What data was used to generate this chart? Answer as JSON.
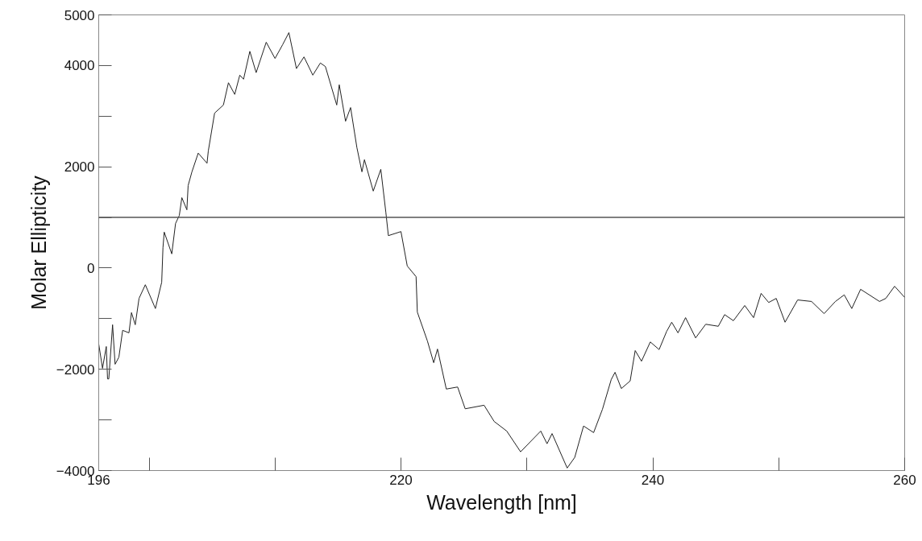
{
  "chart_data": {
    "type": "line",
    "xlabel": "Wavelength [nm]",
    "ylabel": "Molar Ellipticity",
    "xlim": [
      196,
      260
    ],
    "ylim": [
      -4000,
      5000
    ],
    "xticks": [
      196,
      {
        "value": 200,
        "label": null
      },
      {
        "value": 210,
        "label": null
      },
      220,
      {
        "value": 230,
        "label": null
      },
      240,
      {
        "value": 250,
        "label": null
      },
      260
    ],
    "yticks": [
      -4000,
      {
        "value": -3000,
        "label": null
      },
      -2000,
      {
        "value": -1000,
        "label": null
      },
      0,
      {
        "value": 1000,
        "label": null
      },
      2000,
      {
        "value": 3000,
        "label": null
      },
      4000,
      5000
    ],
    "grid": false,
    "marker": "none",
    "line_style": "solid",
    "ref_lines": [
      {
        "axis": "y",
        "value": 1000,
        "color": "#555555"
      }
    ],
    "series": [
      {
        "color": "#222222",
        "x": [
          196.0,
          196.3,
          196.6,
          196.7,
          196.8,
          197.1,
          197.3,
          197.6,
          197.9,
          198.4,
          198.6,
          198.9,
          199.2,
          199.7,
          200.5,
          201.0,
          201.1,
          201.2,
          201.8,
          202.1,
          202.4,
          202.6,
          203.0,
          203.1,
          203.4,
          203.9,
          204.6,
          204.7,
          205.2,
          205.9,
          206.3,
          206.8,
          207.2,
          207.5,
          208.0,
          208.5,
          209.3,
          210.0,
          210.6,
          211.1,
          211.7,
          212.3,
          213.0,
          213.6,
          214.0,
          214.9,
          215.1,
          215.6,
          216.0,
          216.5,
          216.9,
          217.1,
          217.8,
          218.4,
          218.8,
          219.0,
          220.0,
          220.5,
          221.2,
          221.3,
          222.1,
          222.6,
          222.9,
          223.6,
          224.5,
          225.1,
          226.6,
          227.4,
          228.4,
          229.5,
          231.1,
          231.6,
          232.0,
          233.2,
          233.8,
          234.5,
          235.3,
          236.0,
          236.7,
          237.0,
          237.5,
          238.2,
          238.6,
          239.1,
          239.8,
          240.5,
          241.1,
          241.5,
          242.0,
          242.6,
          243.4,
          244.2,
          245.2,
          245.7,
          246.4,
          247.3,
          248.0,
          248.6,
          249.2,
          249.8,
          250.5,
          251.5,
          252.6,
          253.6,
          254.5,
          255.2,
          255.8,
          256.5,
          258.0,
          258.5,
          259.2,
          260.0
        ],
        "values": [
          -1500,
          -1980,
          -1550,
          -2190,
          -2190,
          -1120,
          -1900,
          -1760,
          -1230,
          -1280,
          -880,
          -1120,
          -600,
          -330,
          -800,
          -280,
          400,
          710,
          280,
          880,
          1040,
          1390,
          1150,
          1630,
          1900,
          2270,
          2070,
          2310,
          3060,
          3220,
          3660,
          3430,
          3810,
          3730,
          4280,
          3860,
          4460,
          4140,
          4410,
          4650,
          3940,
          4170,
          3810,
          4050,
          3980,
          3220,
          3620,
          2900,
          3170,
          2380,
          1900,
          2140,
          1520,
          1950,
          1100,
          640,
          720,
          40,
          -170,
          -870,
          -1440,
          -1870,
          -1600,
          -2390,
          -2350,
          -2780,
          -2710,
          -3030,
          -3220,
          -3630,
          -3220,
          -3470,
          -3270,
          -3950,
          -3740,
          -3120,
          -3250,
          -2790,
          -2200,
          -2060,
          -2380,
          -2230,
          -1630,
          -1840,
          -1460,
          -1610,
          -1250,
          -1070,
          -1280,
          -980,
          -1380,
          -1110,
          -1150,
          -920,
          -1040,
          -740,
          -980,
          -500,
          -680,
          -600,
          -1070,
          -630,
          -660,
          -900,
          -660,
          -530,
          -800,
          -420,
          -660,
          -600,
          -360,
          -580
        ]
      }
    ]
  }
}
